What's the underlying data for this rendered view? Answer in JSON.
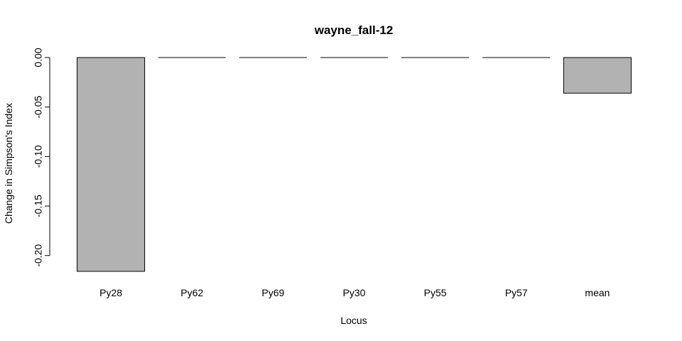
{
  "chart_data": {
    "type": "bar",
    "title": "wayne_fall-12",
    "xlabel": "Locus",
    "ylabel": "Change in Simpson's Index",
    "categories": [
      "Py28",
      "Py62",
      "Py69",
      "Py30",
      "Py55",
      "Py57",
      "mean"
    ],
    "values": [
      -0.216,
      0.0,
      0.0,
      0.0,
      0.0,
      0.0,
      -0.036
    ],
    "ylim": [
      -0.216,
      0.0
    ],
    "yticks": [
      0.0,
      -0.05,
      -0.1,
      -0.15,
      -0.2
    ],
    "ytick_labels": [
      "0.00",
      "-0.05",
      "-0.10",
      "-0.15",
      "-0.20"
    ],
    "grid": false,
    "legend": "none",
    "bar_color": "#b2b2b2",
    "border_color": "#000000"
  }
}
